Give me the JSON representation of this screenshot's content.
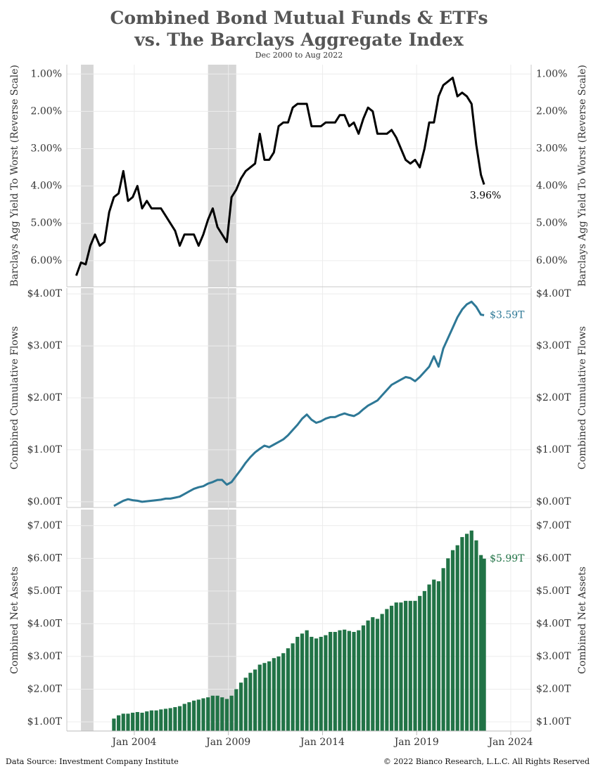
{
  "chart_data": {
    "type": "multi-panel",
    "title": "Combined Bond Mutual Funds & ETFs",
    "title_line2": "vs. The Barclays Aggregate Index",
    "subtitle": "Dec 2000 to Aug 2022",
    "source": "Data Source: Investment Company Institute",
    "copyright": "© 2022 Bianco Research, L.L.C. All Rights Reserved",
    "xlim": [
      "Jun 2000",
      "Feb 2025"
    ],
    "xticks": [
      "Jan 2004",
      "Jan 2009",
      "Jan 2014",
      "Jan 2019",
      "Jan 2024"
    ],
    "shading": [
      [
        "Mar 2001",
        "Nov 2001"
      ],
      [
        "Dec 2007",
        "Jun 2009"
      ]
    ],
    "grid": true,
    "x": [
      "Dec 2000",
      "Mar 2001",
      "Jun 2001",
      "Sep 2001",
      "Dec 2001",
      "Mar 2002",
      "Jun 2002",
      "Sep 2002",
      "Dec 2002",
      "Mar 2003",
      "Jun 2003",
      "Sep 2003",
      "Dec 2003",
      "Mar 2004",
      "Jun 2004",
      "Sep 2004",
      "Dec 2004",
      "Mar 2005",
      "Jun 2005",
      "Sep 2005",
      "Dec 2005",
      "Mar 2006",
      "Jun 2006",
      "Sep 2006",
      "Dec 2006",
      "Mar 2007",
      "Jun 2007",
      "Sep 2007",
      "Dec 2007",
      "Mar 2008",
      "Jun 2008",
      "Sep 2008",
      "Dec 2008",
      "Mar 2009",
      "Jun 2009",
      "Sep 2009",
      "Dec 2009",
      "Mar 2010",
      "Jun 2010",
      "Sep 2010",
      "Dec 2010",
      "Mar 2011",
      "Jun 2011",
      "Sep 2011",
      "Dec 2011",
      "Mar 2012",
      "Jun 2012",
      "Sep 2012",
      "Dec 2012",
      "Mar 2013",
      "Jun 2013",
      "Sep 2013",
      "Dec 2013",
      "Mar 2014",
      "Jun 2014",
      "Sep 2014",
      "Dec 2014",
      "Mar 2015",
      "Jun 2015",
      "Sep 2015",
      "Dec 2015",
      "Mar 2016",
      "Jun 2016",
      "Sep 2016",
      "Dec 2016",
      "Mar 2017",
      "Jun 2017",
      "Sep 2017",
      "Dec 2017",
      "Mar 2018",
      "Jun 2018",
      "Sep 2018",
      "Dec 2018",
      "Mar 2019",
      "Jun 2019",
      "Sep 2019",
      "Dec 2019",
      "Mar 2020",
      "Jun 2020",
      "Sep 2020",
      "Dec 2020",
      "Mar 2021",
      "Jun 2021",
      "Sep 2021",
      "Dec 2021",
      "Mar 2022",
      "Jun 2022",
      "Aug 2022"
    ],
    "panels": [
      {
        "type": "line",
        "y_label": "Barclays Agg Yield To Worst (Reverse Scale)",
        "reverse": true,
        "color": "#000000",
        "ylim": [
          0.75,
          6.7
        ],
        "yticks": [
          {
            "value": 1,
            "label": "1.00%"
          },
          {
            "value": 2,
            "label": "2.00%"
          },
          {
            "value": 3,
            "label": "3.00%"
          },
          {
            "value": 4,
            "label": "4.00%"
          },
          {
            "value": 5,
            "label": "5.00%"
          },
          {
            "value": 6,
            "label": "6.00%"
          }
        ],
        "annotation": "3.96%",
        "values": [
          6.4,
          6.05,
          6.1,
          5.6,
          5.3,
          5.6,
          5.5,
          4.7,
          4.3,
          4.2,
          3.6,
          4.4,
          4.3,
          4.0,
          4.6,
          4.4,
          4.6,
          4.6,
          4.6,
          4.8,
          5.0,
          5.2,
          5.6,
          5.3,
          5.3,
          5.3,
          5.6,
          5.3,
          4.9,
          4.6,
          5.1,
          5.3,
          5.5,
          4.3,
          4.1,
          3.8,
          3.6,
          3.5,
          3.4,
          2.6,
          3.3,
          3.3,
          3.1,
          2.4,
          2.3,
          2.3,
          1.9,
          1.8,
          1.8,
          1.8,
          2.4,
          2.4,
          2.4,
          2.3,
          2.3,
          2.3,
          2.1,
          2.1,
          2.4,
          2.3,
          2.6,
          2.2,
          1.9,
          2.0,
          2.6,
          2.6,
          2.6,
          2.5,
          2.7,
          3.0,
          3.3,
          3.4,
          3.3,
          3.5,
          3.0,
          2.3,
          2.3,
          1.6,
          1.3,
          1.2,
          1.1,
          1.6,
          1.5,
          1.6,
          1.8,
          2.9,
          3.7,
          3.96
        ]
      },
      {
        "type": "line",
        "y_label": "Combined Cumulative Flows",
        "reverse": false,
        "color": "#2e7896",
        "ylim": [
          -0.11,
          4.11
        ],
        "yticks": [
          {
            "value": 0,
            "label": "$0.00T"
          },
          {
            "value": 1,
            "label": "$1.00T"
          },
          {
            "value": 2,
            "label": "$2.00T"
          },
          {
            "value": 3,
            "label": "$3.00T"
          },
          {
            "value": 4,
            "label": "$4.00T"
          }
        ],
        "annotation": "$3.59T",
        "values": [
          null,
          null,
          null,
          null,
          null,
          null,
          null,
          null,
          -0.08,
          -0.03,
          0.02,
          0.05,
          0.03,
          0.02,
          0.0,
          0.01,
          0.02,
          0.03,
          0.04,
          0.06,
          0.06,
          0.08,
          0.1,
          0.15,
          0.2,
          0.25,
          0.28,
          0.3,
          0.35,
          0.38,
          0.42,
          0.42,
          0.33,
          0.38,
          0.5,
          0.62,
          0.75,
          0.86,
          0.95,
          1.02,
          1.08,
          1.05,
          1.1,
          1.15,
          1.2,
          1.28,
          1.38,
          1.48,
          1.6,
          1.68,
          1.58,
          1.52,
          1.55,
          1.6,
          1.63,
          1.63,
          1.67,
          1.7,
          1.67,
          1.65,
          1.7,
          1.78,
          1.85,
          1.9,
          1.95,
          2.05,
          2.15,
          2.25,
          2.3,
          2.35,
          2.4,
          2.38,
          2.32,
          2.4,
          2.5,
          2.6,
          2.8,
          2.6,
          2.95,
          3.15,
          3.35,
          3.55,
          3.7,
          3.8,
          3.85,
          3.75,
          3.6,
          3.59
        ]
      },
      {
        "type": "bar",
        "y_label": "Combined Net Assets",
        "reverse": false,
        "color": "#217346",
        "ylim": [
          0.72,
          7.49
        ],
        "yticks": [
          {
            "value": 1,
            "label": "$1.00T"
          },
          {
            "value": 2,
            "label": "$2.00T"
          },
          {
            "value": 3,
            "label": "$3.00T"
          },
          {
            "value": 4,
            "label": "$4.00T"
          },
          {
            "value": 5,
            "label": "$5.00T"
          },
          {
            "value": 6,
            "label": "$6.00T"
          },
          {
            "value": 7,
            "label": "$7.00T"
          }
        ],
        "annotation": "$5.99T",
        "values": [
          null,
          null,
          null,
          null,
          null,
          null,
          null,
          null,
          1.1,
          1.2,
          1.25,
          1.25,
          1.28,
          1.3,
          1.28,
          1.32,
          1.35,
          1.35,
          1.38,
          1.4,
          1.42,
          1.45,
          1.48,
          1.55,
          1.6,
          1.65,
          1.68,
          1.72,
          1.75,
          1.8,
          1.8,
          1.75,
          1.7,
          1.8,
          2.0,
          2.2,
          2.35,
          2.5,
          2.6,
          2.75,
          2.8,
          2.85,
          2.95,
          3.0,
          3.1,
          3.25,
          3.4,
          3.6,
          3.7,
          3.8,
          3.6,
          3.55,
          3.6,
          3.65,
          3.75,
          3.75,
          3.8,
          3.82,
          3.78,
          3.75,
          3.8,
          3.95,
          4.1,
          4.2,
          4.15,
          4.3,
          4.45,
          4.55,
          4.65,
          4.65,
          4.7,
          4.7,
          4.7,
          4.85,
          5.0,
          5.2,
          5.35,
          5.3,
          5.7,
          6.0,
          6.25,
          6.4,
          6.65,
          6.75,
          6.85,
          6.55,
          6.1,
          5.99
        ]
      }
    ]
  }
}
